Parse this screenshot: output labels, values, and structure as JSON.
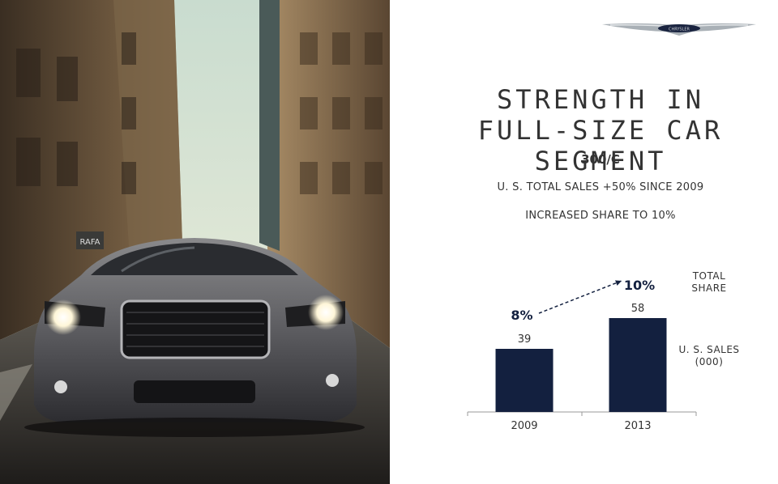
{
  "headline": {
    "line1": "STRENGTH IN",
    "line2": "FULL-SIZE CAR SEGMENT"
  },
  "model": "300/C",
  "facts": [
    "U. S. TOTAL SALES +50% SINCE 2009",
    "INCREASED SHARE TO 10%"
  ],
  "logo_text": "CHRYSLER",
  "photo_sign": "RAFA",
  "legend": {
    "share_label_1": "TOTAL",
    "share_label_2": "SHARE",
    "sales_label_1": "U. S. SALES",
    "sales_label_2": "(000)"
  },
  "colors": {
    "bar": "#13203f",
    "text": "#333333",
    "axis": "#999999"
  },
  "chart_data": {
    "type": "bar",
    "categories": [
      "2009",
      "2013"
    ],
    "series": [
      {
        "values": [
          39,
          58
        ]
      }
    ],
    "share": [
      "8%",
      "10%"
    ],
    "ylim": [
      0,
      65
    ],
    "grid": false
  }
}
